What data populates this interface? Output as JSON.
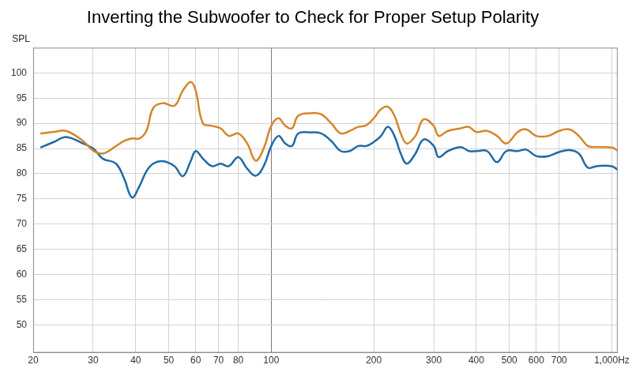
{
  "chart_data": {
    "type": "line",
    "title": "Inverting the Subwoofer to Check for Proper Setup Polarity",
    "ylabel": "SPL",
    "log": "x",
    "grid": true,
    "x": [
      21,
      23,
      25,
      28,
      30,
      32,
      35,
      37,
      39,
      41,
      43,
      45,
      48,
      52,
      55,
      58,
      60,
      63,
      67,
      71,
      75,
      80,
      85,
      90,
      95,
      100,
      105,
      110,
      115,
      120,
      130,
      140,
      150,
      160,
      170,
      180,
      190,
      200,
      210,
      220,
      230,
      240,
      250,
      265,
      280,
      300,
      310,
      330,
      360,
      380,
      400,
      430,
      460,
      490,
      530,
      560,
      600,
      650,
      700,
      750,
      800,
      850,
      900,
      1000,
      1040
    ],
    "series": [
      {
        "color": "#d4862a",
        "values": [
          88,
          88.3,
          88.5,
          86.5,
          84.6,
          84,
          85.5,
          86.5,
          87,
          87,
          88.5,
          93,
          94,
          93.5,
          96.5,
          98.2,
          96.5,
          90,
          89.5,
          89,
          87.5,
          88,
          86,
          82.6,
          85,
          89.5,
          91,
          89.5,
          89,
          91.5,
          92,
          91.8,
          90,
          88,
          88.5,
          89.3,
          89.6,
          91,
          92.8,
          93.3,
          91.5,
          88,
          86,
          87.5,
          90.8,
          89.5,
          87.5,
          88.5,
          89,
          89.3,
          88.3,
          88.5,
          87.5,
          86,
          88.3,
          88.8,
          87.5,
          87.5,
          88.5,
          88.8,
          87.5,
          85.5,
          85.3,
          85.2,
          84.6
        ]
      },
      {
        "color": "#1f6aa5",
        "values": [
          85.2,
          86.3,
          87.3,
          86,
          85,
          83,
          82,
          79,
          75.3,
          77.5,
          80.5,
          82,
          82.5,
          81.5,
          79.5,
          82.5,
          84.5,
          83,
          81.5,
          82,
          81.5,
          83.3,
          81,
          79.6,
          81.5,
          85.5,
          87.5,
          86,
          85.5,
          88,
          88.2,
          88,
          86.5,
          84.5,
          84.5,
          85.5,
          85.5,
          86.3,
          87.5,
          89.3,
          87.5,
          84,
          82,
          84,
          86.8,
          85.5,
          83.3,
          84.5,
          85.3,
          84.5,
          84.5,
          84.5,
          82.3,
          84.5,
          84.5,
          84.8,
          83.5,
          83.5,
          84.3,
          84.7,
          84,
          81.2,
          81.5,
          81.5,
          80.8
        ]
      }
    ],
    "xlim": [
      20,
      1040
    ],
    "xticks": [
      20,
      30,
      40,
      50,
      60,
      70,
      80,
      100,
      200,
      300,
      400,
      500,
      600,
      700,
      {
        "value": 1000,
        "label": "1,000Hz"
      }
    ],
    "ylim": [
      44.5,
      105
    ],
    "yticks": [
      50,
      55,
      60,
      65,
      70,
      75,
      80,
      85,
      90,
      95,
      100
    ]
  }
}
